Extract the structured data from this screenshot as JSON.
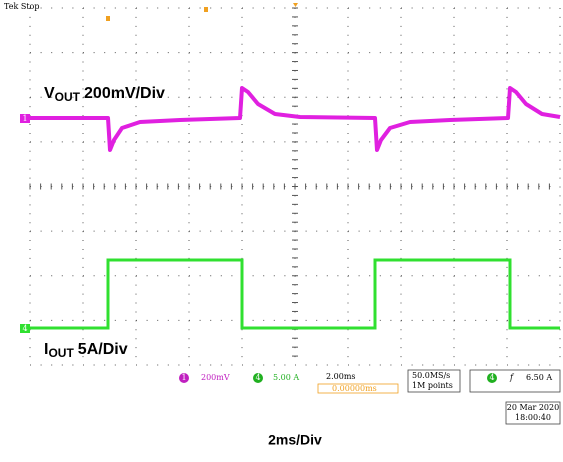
{
  "header": {
    "status": "Tek Stop"
  },
  "channel_markers": {
    "ch1": "1",
    "ch4": "4"
  },
  "labels": {
    "vout": {
      "main": "V",
      "sub": "OUT",
      "scale": "200mV/Div"
    },
    "iout": {
      "main": "I",
      "sub": "OUT",
      "scale": "5A/Div"
    }
  },
  "status_bar": {
    "ch1_badge": "1",
    "ch1_scale": "200mV",
    "ch4_badge": "4",
    "ch4_scale": "5.00 A",
    "timebase": "2.00ms",
    "delay": "0.00000ms",
    "sample_rate": "50.0MS/s",
    "record_length": "1M points",
    "trigger_badge": "4",
    "trigger_symbol": "f",
    "trigger_level": "6.50 A",
    "date": "20 Mar 2020",
    "time": "18:00:40"
  },
  "footer": "2ms/Div"
}
